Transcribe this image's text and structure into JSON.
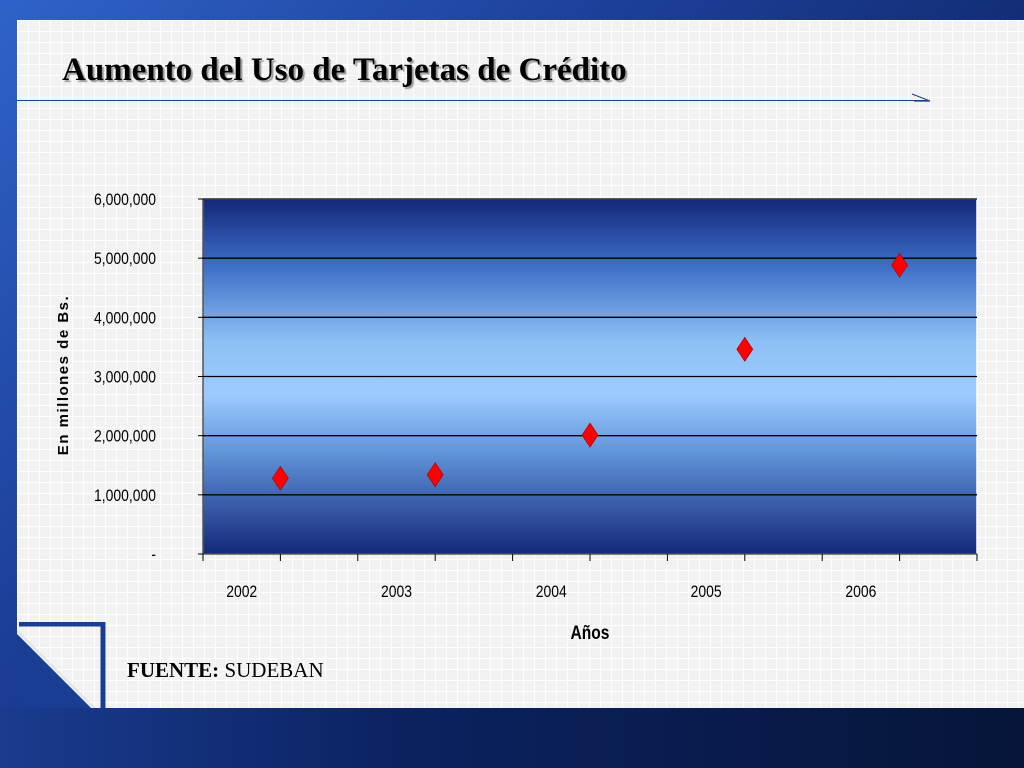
{
  "slide": {
    "title": "Aumento del Uso de Tarjetas de Crédito",
    "source_label": "FUENTE:",
    "source_value": "SUDEBAN",
    "colors": {
      "frame_blue": "#1c3f99",
      "marker_red": "#ff0000",
      "plot_top": "#14287a",
      "plot_mid": "#9dcbff"
    }
  },
  "chart_data": {
    "type": "scatter",
    "title": "",
    "xlabel": "Años",
    "ylabel": "En millones de Bs.",
    "categories": [
      "2002",
      "2003",
      "2004",
      "2005",
      "2006"
    ],
    "x": [
      0.5,
      1.5,
      2.5,
      3.5,
      4.5
    ],
    "y": [
      1280000,
      1340000,
      2010000,
      3460000,
      4880000
    ],
    "ylim": [
      0,
      6000000
    ],
    "yticks": [
      0,
      1000000,
      2000000,
      3000000,
      4000000,
      5000000,
      6000000
    ],
    "ytick_labels": [
      "-",
      "1,000,000",
      "2,000,000",
      "3,000,000",
      "4,000,000",
      "5,000,000",
      "6,000,000"
    ],
    "marker": "diamond",
    "grid": true,
    "legend": "none"
  }
}
